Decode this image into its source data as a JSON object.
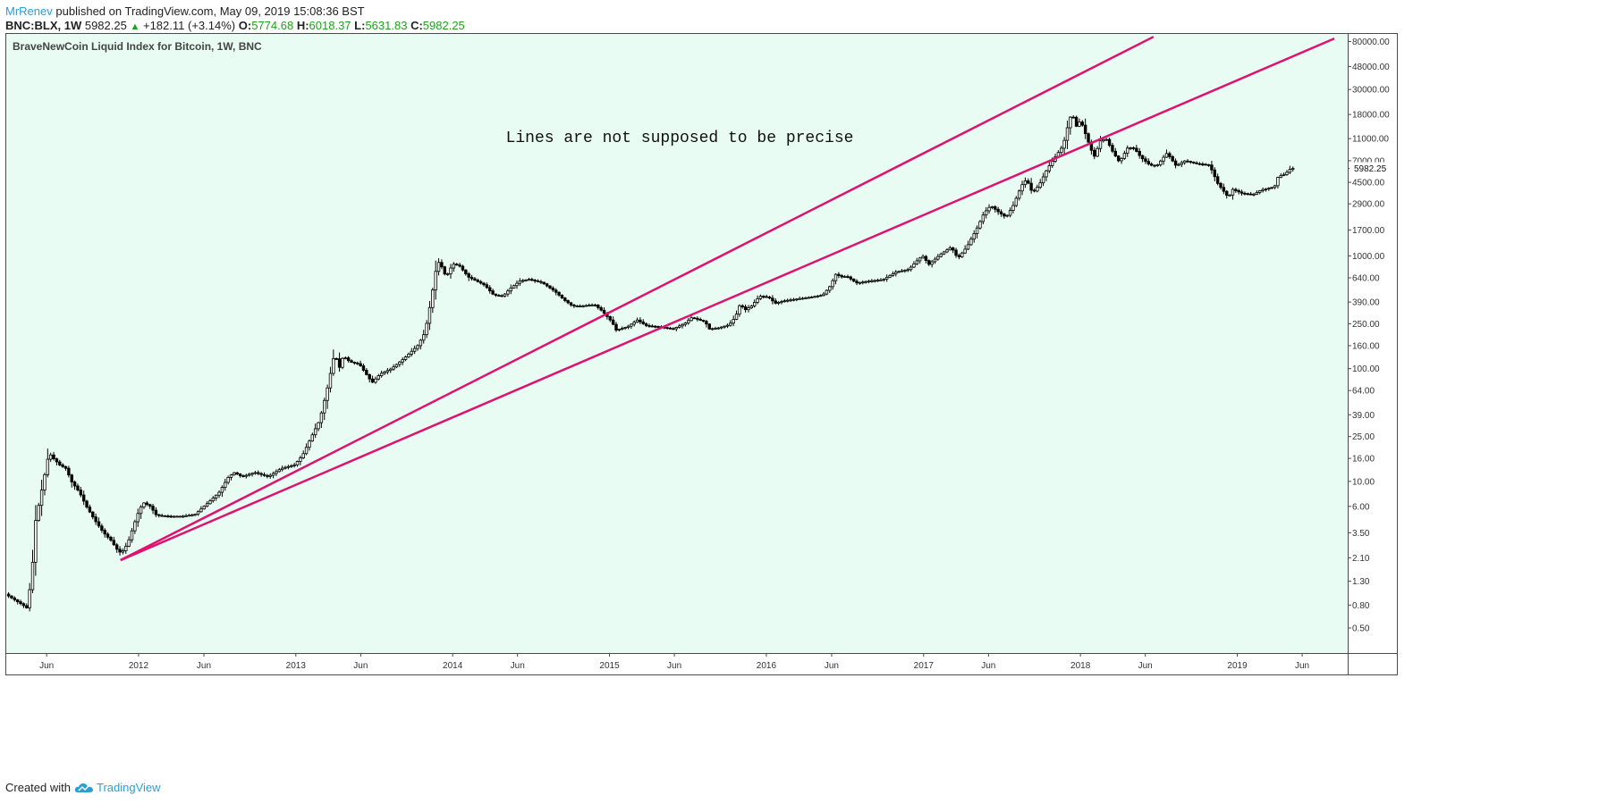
{
  "header": {
    "author": "MrRenev",
    "published": "published on TradingView.com, May 09, 2019 15:08:36 BST",
    "symbol": "BNC:BLX, 1W",
    "last": "5982.25",
    "change": "+182.11 (+3.14%)",
    "open_label": "O:",
    "open": "5774.68",
    "high_label": "H:",
    "high": "6018.37",
    "low_label": "L:",
    "low": "5631.83",
    "close_label": "C:",
    "close": "5982.25"
  },
  "footer": {
    "created_with": "Created with",
    "brand": "TradingView"
  },
  "colors": {
    "plot_bg": "#e8fcf3",
    "trendline": "#e0126f",
    "candle": "#000000",
    "accent": "#2a9fd6",
    "up": "#1aa31a"
  },
  "chart_data": {
    "type": "line",
    "title": "BraveNewCoin Liquid Index for Bitcoin, 1W, BNC",
    "annotation": "Lines are not supposed to be precise",
    "y_scale": "log",
    "ylim": [
      0.3,
      95000
    ],
    "xlim": [
      "2011-02-25",
      "2019-09-15"
    ],
    "x_tick_labels": [
      {
        "date": "2011-06-01",
        "label": "Jun"
      },
      {
        "date": "2012-01-01",
        "label": "2012"
      },
      {
        "date": "2012-06-01",
        "label": "Jun"
      },
      {
        "date": "2013-01-01",
        "label": "2013"
      },
      {
        "date": "2013-06-01",
        "label": "Jun"
      },
      {
        "date": "2014-01-01",
        "label": "2014"
      },
      {
        "date": "2014-06-01",
        "label": "Jun"
      },
      {
        "date": "2015-01-01",
        "label": "2015"
      },
      {
        "date": "2015-06-01",
        "label": "Jun"
      },
      {
        "date": "2016-01-01",
        "label": "2016"
      },
      {
        "date": "2016-06-01",
        "label": "Jun"
      },
      {
        "date": "2017-01-01",
        "label": "2017"
      },
      {
        "date": "2017-06-01",
        "label": "Jun"
      },
      {
        "date": "2018-01-01",
        "label": "2018"
      },
      {
        "date": "2018-06-01",
        "label": "Jun"
      },
      {
        "date": "2019-01-01",
        "label": "2019"
      },
      {
        "date": "2019-06-01",
        "label": "Jun"
      }
    ],
    "y_ticks": [
      {
        "value": 80000,
        "label": "80000.00"
      },
      {
        "value": 48000,
        "label": "48000.00"
      },
      {
        "value": 30000,
        "label": "30000.00"
      },
      {
        "value": 18000,
        "label": "18000.00"
      },
      {
        "value": 11000,
        "label": "11000.00"
      },
      {
        "value": 7000,
        "label": "7000.00"
      },
      {
        "value": 4500,
        "label": "4500.00"
      },
      {
        "value": 2900,
        "label": "2900.00"
      },
      {
        "value": 1700,
        "label": "1700.00"
      },
      {
        "value": 1000,
        "label": "1000.00"
      },
      {
        "value": 640,
        "label": "640.00"
      },
      {
        "value": 390,
        "label": "390.00"
      },
      {
        "value": 250,
        "label": "250.00"
      },
      {
        "value": 160,
        "label": "160.00"
      },
      {
        "value": 100,
        "label": "100.00"
      },
      {
        "value": 64,
        "label": "64.00"
      },
      {
        "value": 39,
        "label": "39.00"
      },
      {
        "value": 25,
        "label": "25.00"
      },
      {
        "value": 16,
        "label": "16.00"
      },
      {
        "value": 10,
        "label": "10.00"
      },
      {
        "value": 6,
        "label": "6.00"
      },
      {
        "value": 3.5,
        "label": "3.50"
      },
      {
        "value": 2.1,
        "label": "2.10"
      },
      {
        "value": 1.3,
        "label": "1.30"
      },
      {
        "value": 0.8,
        "label": "0.80"
      },
      {
        "value": 0.5,
        "label": "0.50"
      }
    ],
    "last_price": {
      "value": 5982.25,
      "label": "5982.25"
    },
    "price_path": [
      [
        "2011-03-01",
        1.0
      ],
      [
        "2011-04-10",
        0.8
      ],
      [
        "2011-04-20",
        0.75
      ],
      [
        "2011-05-01",
        1.5
      ],
      [
        "2011-05-10",
        4.5
      ],
      [
        "2011-05-20",
        7.0
      ],
      [
        "2011-06-01",
        12.0
      ],
      [
        "2011-06-10",
        18.0
      ],
      [
        "2011-06-20",
        16.0
      ],
      [
        "2011-07-05",
        14.0
      ],
      [
        "2011-07-20",
        13.0
      ],
      [
        "2011-08-01",
        10.0
      ],
      [
        "2011-08-20",
        8.0
      ],
      [
        "2011-09-05",
        6.0
      ],
      [
        "2011-09-25",
        4.5
      ],
      [
        "2011-10-15",
        3.5
      ],
      [
        "2011-11-01",
        3.0
      ],
      [
        "2011-11-15",
        2.5
      ],
      [
        "2011-11-25",
        2.3
      ],
      [
        "2011-12-10",
        2.8
      ],
      [
        "2012-01-01",
        5.0
      ],
      [
        "2012-01-15",
        6.5
      ],
      [
        "2012-02-01",
        6.0
      ],
      [
        "2012-02-15",
        5.0
      ],
      [
        "2012-03-15",
        4.9
      ],
      [
        "2012-04-15",
        4.9
      ],
      [
        "2012-05-15",
        5.1
      ],
      [
        "2012-06-15",
        6.5
      ],
      [
        "2012-07-10",
        8.0
      ],
      [
        "2012-08-01",
        11.0
      ],
      [
        "2012-08-15",
        12.0
      ],
      [
        "2012-09-01",
        11.0
      ],
      [
        "2012-10-01",
        12.0
      ],
      [
        "2012-11-01",
        11.0
      ],
      [
        "2012-12-01",
        13.0
      ],
      [
        "2013-01-01",
        14.0
      ],
      [
        "2013-01-20",
        17.0
      ],
      [
        "2013-02-10",
        25.0
      ],
      [
        "2013-03-01",
        35.0
      ],
      [
        "2013-03-20",
        70.0
      ],
      [
        "2013-04-05",
        140.0
      ],
      [
        "2013-04-15",
        100.0
      ],
      [
        "2013-04-25",
        130.0
      ],
      [
        "2013-05-10",
        115.0
      ],
      [
        "2013-06-01",
        110.0
      ],
      [
        "2013-07-01",
        75.0
      ],
      [
        "2013-07-20",
        90.0
      ],
      [
        "2013-08-15",
        100.0
      ],
      [
        "2013-09-15",
        125.0
      ],
      [
        "2013-10-15",
        160.0
      ],
      [
        "2013-11-01",
        210.0
      ],
      [
        "2013-11-15",
        400.0
      ],
      [
        "2013-11-25",
        700.0
      ],
      [
        "2013-12-01",
        900.0
      ],
      [
        "2013-12-10",
        800.0
      ],
      [
        "2013-12-20",
        650.0
      ],
      [
        "2014-01-05",
        850.0
      ],
      [
        "2014-01-20",
        820.0
      ],
      [
        "2014-02-10",
        650.0
      ],
      [
        "2014-03-01",
        600.0
      ],
      [
        "2014-03-20",
        550.0
      ],
      [
        "2014-04-10",
        450.0
      ],
      [
        "2014-05-01",
        440.0
      ],
      [
        "2014-05-20",
        520.0
      ],
      [
        "2014-06-10",
        600.0
      ],
      [
        "2014-07-01",
        620.0
      ],
      [
        "2014-08-01",
        580.0
      ],
      [
        "2014-09-01",
        480.0
      ],
      [
        "2014-09-20",
        410.0
      ],
      [
        "2014-10-10",
        360.0
      ],
      [
        "2014-11-01",
        360.0
      ],
      [
        "2014-12-01",
        370.0
      ],
      [
        "2014-12-20",
        320.0
      ],
      [
        "2015-01-10",
        260.0
      ],
      [
        "2015-01-20",
        220.0
      ],
      [
        "2015-02-15",
        235.0
      ],
      [
        "2015-03-10",
        270.0
      ],
      [
        "2015-04-01",
        240.0
      ],
      [
        "2015-05-01",
        235.0
      ],
      [
        "2015-06-01",
        225.0
      ],
      [
        "2015-07-01",
        255.0
      ],
      [
        "2015-07-15",
        285.0
      ],
      [
        "2015-08-15",
        260.0
      ],
      [
        "2015-08-25",
        225.0
      ],
      [
        "2015-09-15",
        230.0
      ],
      [
        "2015-10-10",
        245.0
      ],
      [
        "2015-10-25",
        290.0
      ],
      [
        "2015-11-05",
        380.0
      ],
      [
        "2015-11-15",
        330.0
      ],
      [
        "2015-12-01",
        360.0
      ],
      [
        "2015-12-20",
        440.0
      ],
      [
        "2016-01-10",
        430.0
      ],
      [
        "2016-01-25",
        380.0
      ],
      [
        "2016-02-15",
        400.0
      ],
      [
        "2016-03-15",
        415.0
      ],
      [
        "2016-04-15",
        430.0
      ],
      [
        "2016-05-15",
        450.0
      ],
      [
        "2016-06-01",
        540.0
      ],
      [
        "2016-06-15",
        700.0
      ],
      [
        "2016-06-25",
        650.0
      ],
      [
        "2016-07-10",
        660.0
      ],
      [
        "2016-08-01",
        575.0
      ],
      [
        "2016-09-01",
        600.0
      ],
      [
        "2016-10-01",
        615.0
      ],
      [
        "2016-11-01",
        720.0
      ],
      [
        "2016-12-01",
        760.0
      ],
      [
        "2016-12-25",
        950.0
      ],
      [
        "2017-01-05",
        1000.0
      ],
      [
        "2017-01-15",
        830.0
      ],
      [
        "2017-02-15",
        1050.0
      ],
      [
        "2017-03-10",
        1200.0
      ],
      [
        "2017-03-25",
        950.0
      ],
      [
        "2017-04-15",
        1200.0
      ],
      [
        "2017-05-10",
        1800.0
      ],
      [
        "2017-05-25",
        2400.0
      ],
      [
        "2017-06-10",
        2800.0
      ],
      [
        "2017-06-25",
        2500.0
      ],
      [
        "2017-07-15",
        2200.0
      ],
      [
        "2017-08-01",
        2800.0
      ],
      [
        "2017-08-20",
        4200.0
      ],
      [
        "2017-09-01",
        4800.0
      ],
      [
        "2017-09-15",
        3600.0
      ],
      [
        "2017-10-01",
        4300.0
      ],
      [
        "2017-10-20",
        6000.0
      ],
      [
        "2017-11-05",
        7400.0
      ],
      [
        "2017-11-25",
        9500.0
      ],
      [
        "2017-12-10",
        16500.0
      ],
      [
        "2017-12-17",
        18500.0
      ],
      [
        "2017-12-24",
        13800.0
      ],
      [
        "2018-01-05",
        16000.0
      ],
      [
        "2018-01-20",
        11000.0
      ],
      [
        "2018-02-05",
        7500.0
      ],
      [
        "2018-02-20",
        10500.0
      ],
      [
        "2018-03-05",
        11000.0
      ],
      [
        "2018-03-20",
        8500.0
      ],
      [
        "2018-04-05",
        6800.0
      ],
      [
        "2018-04-25",
        9200.0
      ],
      [
        "2018-05-10",
        9000.0
      ],
      [
        "2018-05-25",
        7500.0
      ],
      [
        "2018-06-15",
        6400.0
      ],
      [
        "2018-07-01",
        6300.0
      ],
      [
        "2018-07-25",
        8200.0
      ],
      [
        "2018-08-15",
        6300.0
      ],
      [
        "2018-09-05",
        7000.0
      ],
      [
        "2018-10-01",
        6600.0
      ],
      [
        "2018-11-01",
        6400.0
      ],
      [
        "2018-11-20",
        4400.0
      ],
      [
        "2018-12-15",
        3300.0
      ],
      [
        "2018-12-25",
        3900.0
      ],
      [
        "2019-01-15",
        3600.0
      ],
      [
        "2019-02-10",
        3500.0
      ],
      [
        "2019-03-01",
        3850.0
      ],
      [
        "2019-04-01",
        4100.0
      ],
      [
        "2019-04-10",
        5100.0
      ],
      [
        "2019-04-25",
        5300.0
      ],
      [
        "2019-05-05",
        5750.0
      ],
      [
        "2019-05-09",
        5982.25
      ]
    ],
    "trendlines": [
      {
        "from": [
          "2011-11-20",
          2.0
        ],
        "to": [
          "2018-06-20",
          88000
        ]
      },
      {
        "from": [
          "2011-11-20",
          2.0
        ],
        "to": [
          "2019-08-15",
          85000
        ]
      }
    ]
  }
}
